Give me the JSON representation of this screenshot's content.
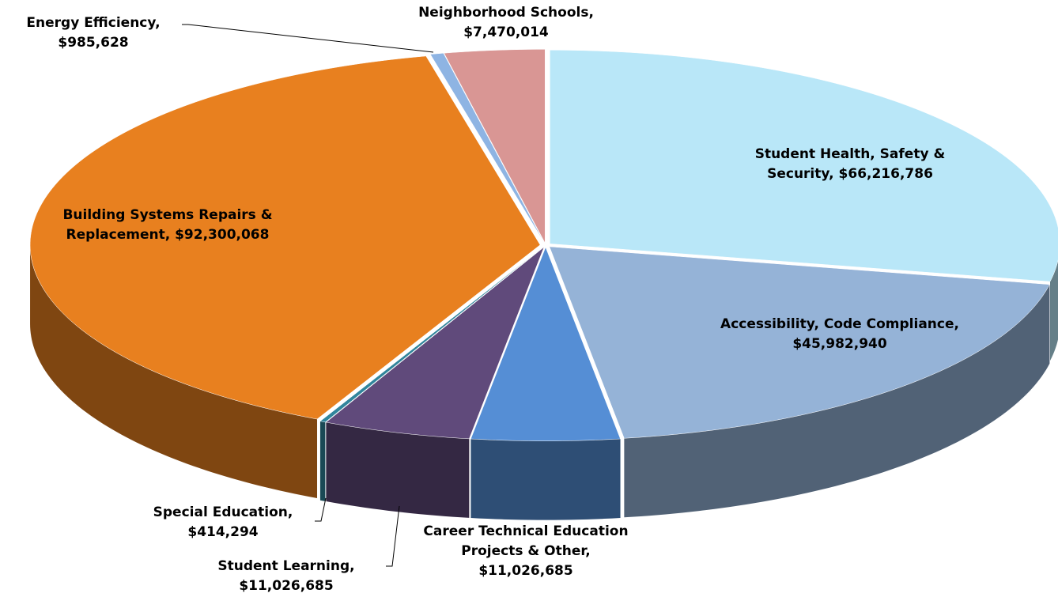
{
  "chart_data": {
    "type": "pie3d",
    "categories": [
      "Student Health, Safety & Security,",
      "Accessibility, Code Compliance,",
      "Career Technical Education Projects & Other,",
      "Student Learning,",
      "Special Education,",
      "Building Systems Repairs & Replacement,",
      "Energy Efficiency,",
      "Neighborhood Schools,"
    ],
    "values": [
      66216786,
      45982940,
      11026685,
      11026685,
      414294,
      92300068,
      985628,
      7470014
    ],
    "value_labels": [
      "$66,216,786",
      "$45,982,940",
      "$11,026,685",
      "$11,026,685",
      "$414,294",
      "$92,300,068",
      "$985,628",
      "$7,470,014"
    ],
    "colors": [
      "#b9e7f8",
      "#95b3d7",
      "#558ed5",
      "#604a7b",
      "#31859c",
      "#e8801f",
      "#8eb4e3",
      "#d99694"
    ]
  }
}
